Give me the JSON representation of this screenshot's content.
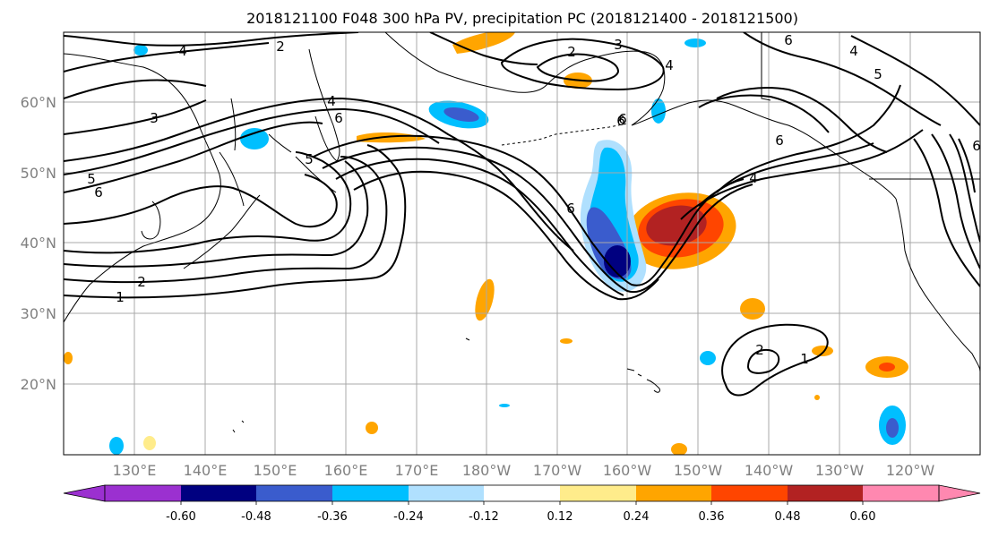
{
  "title": "2018121100 F048 300 hPa PV, precipitation PC (2018121400 - 2018121500)",
  "axes": {
    "lat_labels": [
      "60°N",
      "50°N",
      "40°N",
      "30°N",
      "20°N"
    ],
    "lon_labels": [
      "130°E",
      "140°E",
      "150°E",
      "160°E",
      "170°E",
      "180°W",
      "170°W",
      "160°W",
      "150°W",
      "140°W",
      "130°W",
      "120°W"
    ]
  },
  "colorbar": {
    "colors": [
      "#9b30d0",
      "#000080",
      "#3a5ccd",
      "#00bfff",
      "#b0e0fe",
      "#ffffff",
      "#ffec8b",
      "#ffa500",
      "#ff4500",
      "#b22222",
      "#ff88b0"
    ],
    "tick_labels": [
      "-0.60",
      "-0.48",
      "-0.36",
      "-0.24",
      "-0.12",
      "0.12",
      "0.24",
      "0.36",
      "0.48",
      "0.60"
    ]
  },
  "contour_labels": [
    "2",
    "4",
    "3",
    "2",
    "3",
    "4",
    "4",
    "6",
    "6",
    "5",
    "6",
    "5",
    "6",
    "1",
    "2",
    "6",
    "4",
    "4",
    "6",
    "5",
    "6",
    "6",
    "2",
    "1"
  ],
  "colors": {
    "grid": "#a9a9a9",
    "coast": "#000000",
    "contour": "#000000"
  }
}
